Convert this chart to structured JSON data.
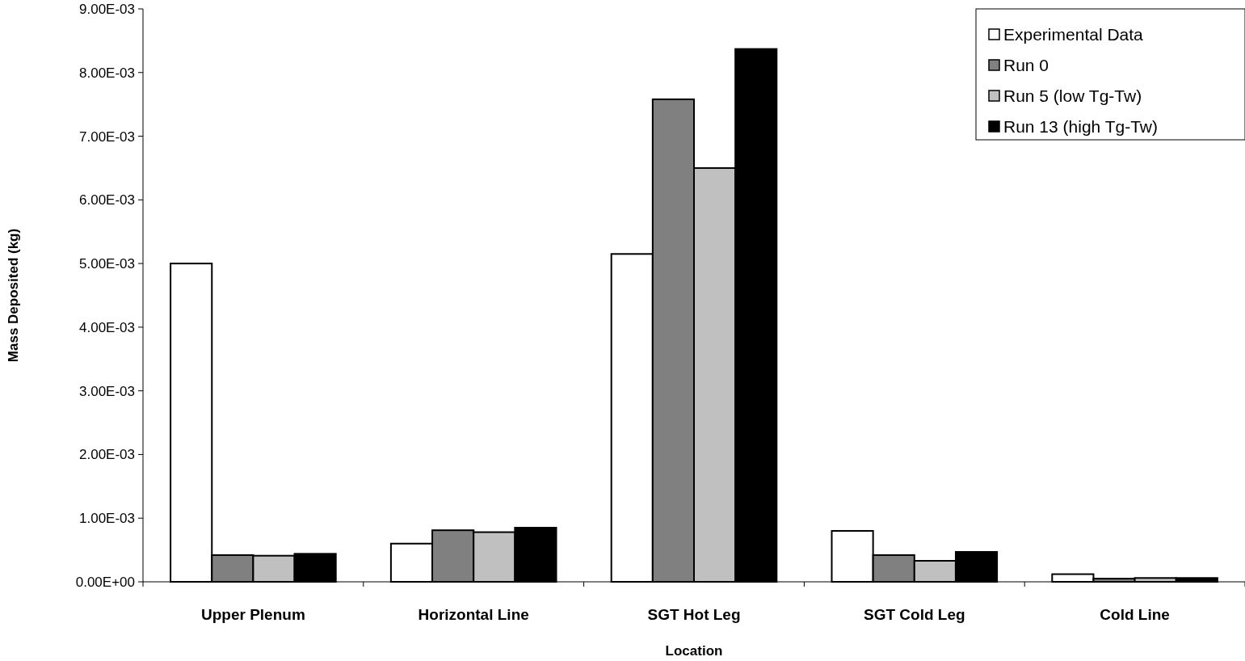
{
  "chart_data": {
    "type": "bar",
    "xlabel": "Location",
    "ylabel": "Mass Deposited (kg)",
    "categories": [
      "Upper Plenum",
      "Horizontal Line",
      "SGT Hot Leg",
      "SGT Cold Leg",
      "Cold Line"
    ],
    "series": [
      {
        "name": "Experimental Data",
        "color": "#ffffff",
        "values": [
          0.005,
          0.0006,
          0.00515,
          0.0008,
          0.00012
        ]
      },
      {
        "name": "Run 0",
        "color": "#808080",
        "values": [
          0.00042,
          0.00081,
          0.00758,
          0.00042,
          5e-05
        ]
      },
      {
        "name": "Run 5 (low Tg-Tw)",
        "color": "#c0c0c0",
        "values": [
          0.00041,
          0.00078,
          0.0065,
          0.00033,
          6e-05
        ]
      },
      {
        "name": "Run 13 (high Tg-Tw)",
        "color": "#000000",
        "values": [
          0.00044,
          0.00085,
          0.00837,
          0.00047,
          6e-05
        ]
      }
    ],
    "ylim": [
      0,
      0.009
    ],
    "yticks": [
      {
        "value": 0,
        "label": "0.00E+00"
      },
      {
        "value": 0.001,
        "label": "1.00E-03"
      },
      {
        "value": 0.002,
        "label": "2.00E-03"
      },
      {
        "value": 0.003,
        "label": "3.00E-03"
      },
      {
        "value": 0.004,
        "label": "4.00E-03"
      },
      {
        "value": 0.005,
        "label": "5.00E-03"
      },
      {
        "value": 0.006,
        "label": "6.00E-03"
      },
      {
        "value": 0.007,
        "label": "7.00E-03"
      },
      {
        "value": 0.008,
        "label": "8.00E-03"
      },
      {
        "value": 0.009,
        "label": "9.00E-03"
      }
    ],
    "grid": false,
    "legend": "top right"
  }
}
